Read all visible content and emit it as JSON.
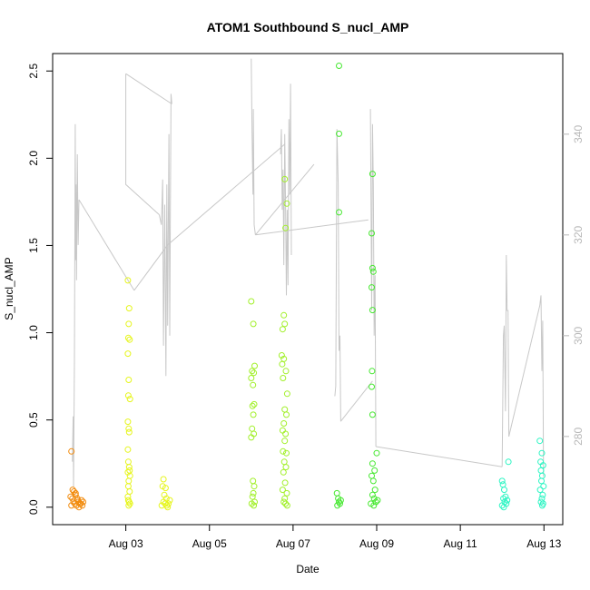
{
  "chart_data": {
    "type": "scatter",
    "title": "ATOM1 Southbound S_nucl_AMP",
    "xlabel": "Date",
    "ylabel": "S_nucl_AMP",
    "x_ticks": [
      "Aug 03",
      "Aug 05",
      "Aug 07",
      "Aug 09",
      "Aug 11",
      "Aug 13"
    ],
    "x_tick_days": [
      3,
      5,
      7,
      9,
      11,
      13
    ],
    "xlim_days": [
      1.25,
      13.45
    ],
    "ylim": [
      -0.1,
      2.6
    ],
    "y_ticks": [
      0.0,
      0.5,
      1.0,
      1.5,
      2.0,
      2.5
    ],
    "y2_ticks": [
      280,
      300,
      320,
      340
    ],
    "y2lim": [
      262.5,
      356
    ],
    "grid": false,
    "series": [
      {
        "color": "#f28c0f",
        "points": [
          [
            1.7,
            0.32
          ],
          [
            1.68,
            0.06
          ],
          [
            1.72,
            0.05
          ],
          [
            1.75,
            0.03
          ],
          [
            1.78,
            0.02
          ],
          [
            1.8,
            0.08
          ],
          [
            1.82,
            0.01
          ],
          [
            1.85,
            0.04
          ],
          [
            1.88,
            0.0
          ],
          [
            1.9,
            0.02
          ],
          [
            1.73,
            0.1
          ],
          [
            1.76,
            0.09
          ],
          [
            1.8,
            0.07
          ],
          [
            1.84,
            0.05
          ],
          [
            1.86,
            0.03
          ],
          [
            1.7,
            0.01
          ],
          [
            1.92,
            0.02
          ],
          [
            1.94,
            0.04
          ],
          [
            1.96,
            0.01
          ],
          [
            1.98,
            0.03
          ]
        ]
      },
      {
        "color": "#e6f51c",
        "points": [
          [
            3.05,
            1.3
          ],
          [
            3.08,
            1.14
          ],
          [
            3.07,
            1.05
          ],
          [
            3.06,
            0.97
          ],
          [
            3.09,
            0.96
          ],
          [
            3.05,
            0.88
          ],
          [
            3.07,
            0.73
          ],
          [
            3.06,
            0.64
          ],
          [
            3.1,
            0.62
          ],
          [
            3.05,
            0.49
          ],
          [
            3.07,
            0.45
          ],
          [
            3.08,
            0.43
          ],
          [
            3.05,
            0.33
          ],
          [
            3.06,
            0.26
          ],
          [
            3.08,
            0.23
          ],
          [
            3.09,
            0.21
          ],
          [
            3.05,
            0.2
          ],
          [
            3.1,
            0.18
          ],
          [
            3.07,
            0.15
          ],
          [
            3.06,
            0.12
          ],
          [
            3.09,
            0.09
          ],
          [
            3.05,
            0.06
          ],
          [
            3.08,
            0.03
          ],
          [
            3.07,
            0.01
          ],
          [
            3.06,
            0.04
          ],
          [
            3.1,
            0.02
          ],
          [
            3.9,
            0.16
          ],
          [
            3.95,
            0.11
          ],
          [
            3.88,
            0.12
          ],
          [
            3.92,
            0.07
          ],
          [
            3.97,
            0.05
          ],
          [
            3.9,
            0.03
          ],
          [
            3.94,
            0.02
          ],
          [
            3.98,
            0.01
          ],
          [
            4.02,
            0.02
          ],
          [
            4.05,
            0.04
          ],
          [
            3.86,
            0.01
          ],
          [
            4.0,
            0.0
          ]
        ]
      },
      {
        "color": "#a2f02a",
        "points": [
          [
            6.0,
            1.18
          ],
          [
            6.05,
            1.05
          ],
          [
            6.08,
            0.81
          ],
          [
            6.02,
            0.78
          ],
          [
            6.06,
            0.77
          ],
          [
            6.0,
            0.74
          ],
          [
            6.04,
            0.7
          ],
          [
            6.07,
            0.59
          ],
          [
            6.03,
            0.58
          ],
          [
            6.05,
            0.53
          ],
          [
            6.02,
            0.45
          ],
          [
            6.0,
            0.4
          ],
          [
            6.06,
            0.42
          ],
          [
            6.04,
            0.15
          ],
          [
            6.07,
            0.12
          ],
          [
            6.05,
            0.08
          ],
          [
            6.03,
            0.06
          ],
          [
            6.08,
            0.03
          ],
          [
            6.01,
            0.02
          ],
          [
            6.06,
            0.01
          ],
          [
            6.8,
            1.88
          ],
          [
            6.85,
            1.74
          ],
          [
            6.82,
            1.6
          ],
          [
            6.78,
            1.1
          ],
          [
            6.8,
            1.05
          ],
          [
            6.75,
            1.02
          ],
          [
            6.73,
            0.87
          ],
          [
            6.78,
            0.85
          ],
          [
            6.74,
            0.82
          ],
          [
            6.83,
            0.78
          ],
          [
            6.76,
            0.74
          ],
          [
            6.86,
            0.65
          ],
          [
            6.8,
            0.56
          ],
          [
            6.84,
            0.53
          ],
          [
            6.78,
            0.48
          ],
          [
            6.75,
            0.44
          ],
          [
            6.82,
            0.42
          ],
          [
            6.8,
            0.38
          ],
          [
            6.76,
            0.32
          ],
          [
            6.84,
            0.31
          ],
          [
            6.79,
            0.26
          ],
          [
            6.83,
            0.23
          ],
          [
            6.77,
            0.2
          ],
          [
            6.81,
            0.14
          ],
          [
            6.75,
            0.1
          ],
          [
            6.85,
            0.08
          ],
          [
            6.8,
            0.05
          ],
          [
            6.78,
            0.03
          ],
          [
            6.82,
            0.02
          ],
          [
            6.86,
            0.01
          ]
        ]
      },
      {
        "color": "#46e830",
        "points": [
          [
            8.1,
            2.53
          ],
          [
            8.1,
            2.14
          ],
          [
            8.1,
            1.69
          ],
          [
            8.05,
            0.08
          ],
          [
            8.08,
            0.05
          ],
          [
            8.1,
            0.03
          ],
          [
            8.12,
            0.02
          ],
          [
            8.06,
            0.01
          ],
          [
            8.14,
            0.04
          ],
          [
            8.9,
            1.91
          ],
          [
            8.88,
            1.57
          ],
          [
            8.9,
            1.37
          ],
          [
            8.92,
            1.35
          ],
          [
            8.88,
            1.26
          ],
          [
            8.9,
            1.13
          ],
          [
            8.89,
            0.78
          ],
          [
            8.88,
            0.69
          ],
          [
            8.9,
            0.53
          ],
          [
            9.0,
            0.31
          ],
          [
            8.9,
            0.25
          ],
          [
            8.95,
            0.21
          ],
          [
            8.88,
            0.18
          ],
          [
            8.92,
            0.15
          ],
          [
            8.96,
            0.1
          ],
          [
            8.9,
            0.07
          ],
          [
            8.94,
            0.05
          ],
          [
            8.98,
            0.03
          ],
          [
            8.86,
            0.02
          ],
          [
            9.02,
            0.04
          ],
          [
            8.93,
            0.01
          ]
        ]
      },
      {
        "color": "#2cf5c3",
        "points": [
          [
            12.0,
            0.15
          ],
          [
            12.02,
            0.13
          ],
          [
            12.05,
            0.1
          ],
          [
            12.08,
            0.06
          ],
          [
            12.03,
            0.05
          ],
          [
            12.06,
            0.03
          ],
          [
            12.1,
            0.02
          ],
          [
            12.0,
            0.01
          ],
          [
            12.12,
            0.04
          ],
          [
            12.15,
            0.26
          ],
          [
            12.04,
            0.0
          ],
          [
            12.9,
            0.38
          ],
          [
            12.95,
            0.31
          ],
          [
            12.92,
            0.26
          ],
          [
            12.98,
            0.24
          ],
          [
            12.93,
            0.21
          ],
          [
            12.96,
            0.18
          ],
          [
            12.94,
            0.15
          ],
          [
            12.99,
            0.12
          ],
          [
            12.91,
            0.1
          ],
          [
            12.97,
            0.07
          ],
          [
            12.95,
            0.05
          ],
          [
            12.93,
            0.03
          ],
          [
            12.98,
            0.02
          ],
          [
            12.96,
            0.01
          ]
        ]
      }
    ],
    "secondary_line": {
      "color": "#c8c8c8",
      "segments": [
        [
          [
            1.72,
            275
          ],
          [
            1.74,
            284
          ],
          [
            1.75,
            270
          ],
          [
            1.77,
            295
          ],
          [
            1.79,
            342
          ],
          [
            1.8,
            315
          ],
          [
            1.81,
            330
          ],
          [
            1.82,
            311
          ],
          [
            1.84,
            336
          ],
          [
            1.86,
            318
          ],
          [
            1.88,
            327
          ]
        ],
        [
          [
            1.88,
            327
          ],
          [
            3.2,
            309
          ]
        ],
        [
          [
            3.0,
            352
          ],
          [
            3.0,
            330
          ],
          [
            3.8,
            324
          ]
        ],
        [
          [
            3.0,
            352
          ],
          [
            4.1,
            346
          ]
        ],
        [
          [
            3.8,
            324
          ],
          [
            3.85,
            322
          ],
          [
            3.88,
            331
          ],
          [
            3.9,
            298
          ],
          [
            3.93,
            326
          ],
          [
            3.96,
            292
          ],
          [
            3.98,
            330
          ],
          [
            4.0,
            302
          ],
          [
            4.03,
            340
          ],
          [
            4.05,
            300
          ],
          [
            4.08,
            348
          ],
          [
            4.1,
            346
          ]
        ],
        [
          [
            3.2,
            309
          ],
          [
            4.0,
            318
          ],
          [
            6.8,
            338
          ]
        ],
        [
          [
            6.0,
            355
          ],
          [
            6.02,
            340
          ],
          [
            6.04,
            328
          ],
          [
            6.05,
            345
          ],
          [
            6.07,
            322
          ],
          [
            6.1,
            320
          ]
        ],
        [
          [
            6.1,
            320
          ],
          [
            7.5,
            334
          ]
        ],
        [
          [
            6.1,
            320
          ],
          [
            8.8,
            323
          ]
        ],
        [
          [
            6.7,
            336
          ],
          [
            6.72,
            341
          ],
          [
            6.74,
            325
          ],
          [
            6.76,
            333
          ],
          [
            6.78,
            314
          ],
          [
            6.8,
            340
          ],
          [
            6.82,
            326
          ],
          [
            6.84,
            308
          ],
          [
            6.86,
            325
          ],
          [
            6.88,
            310
          ],
          [
            6.9,
            343
          ],
          [
            6.92,
            328
          ],
          [
            6.94,
            350
          ],
          [
            6.96,
            316
          ]
        ],
        [
          [
            8.0,
            288
          ],
          [
            8.02,
            290
          ],
          [
            8.05,
            341
          ],
          [
            8.08,
            330
          ],
          [
            8.1,
            297
          ],
          [
            8.12,
            300
          ],
          [
            8.14,
            283
          ]
        ],
        [
          [
            8.14,
            283
          ],
          [
            8.9,
            291
          ]
        ],
        [
          [
            8.85,
            345
          ],
          [
            8.88,
            305
          ],
          [
            8.9,
            342
          ],
          [
            8.92,
            330
          ],
          [
            8.94,
            300
          ],
          [
            8.96,
            312
          ],
          [
            8.98,
            278
          ]
        ],
        [
          [
            8.98,
            278
          ],
          [
            12.0,
            274
          ]
        ],
        [
          [
            12.0,
            274
          ],
          [
            12.03,
            300
          ],
          [
            12.05,
            302
          ],
          [
            12.08,
            285
          ],
          [
            12.1,
            316
          ],
          [
            12.12,
            305
          ],
          [
            12.14,
            305
          ],
          [
            12.16,
            280
          ]
        ],
        [
          [
            12.16,
            280
          ],
          [
            12.9,
            306
          ]
        ],
        [
          [
            12.9,
            306
          ],
          [
            12.93,
            308
          ],
          [
            12.95,
            293
          ],
          [
            12.97,
            303
          ],
          [
            12.99,
            272
          ]
        ]
      ]
    }
  }
}
